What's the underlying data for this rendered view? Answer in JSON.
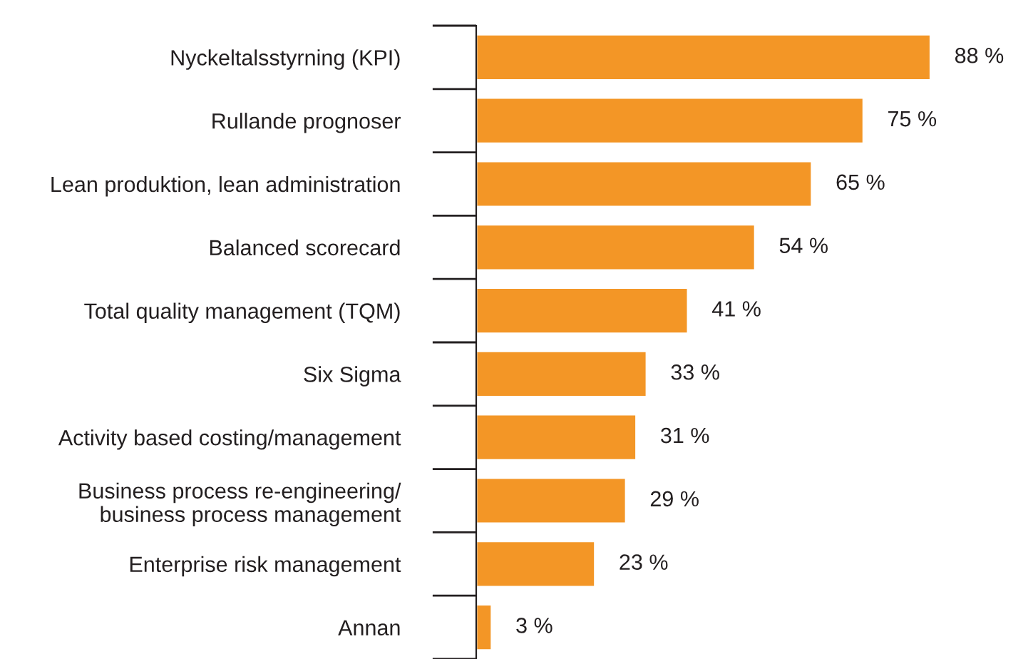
{
  "chart_data": {
    "type": "bar",
    "orientation": "horizontal",
    "categories": [
      "Nyckeltalsstyrning (KPI)",
      "Rullande prognoser",
      "Lean produktion, lean administration",
      "Balanced scorecard",
      "Total quality management (TQM)",
      "Six Sigma",
      "Activity based costing/management",
      "Business process re-engineering/\nbusiness process management",
      "Enterprise risk management",
      "Annan"
    ],
    "values": [
      88,
      75,
      65,
      54,
      41,
      33,
      31,
      29,
      23,
      3
    ],
    "value_labels": [
      "88 %",
      "75 %",
      "65 %",
      "54 %",
      "41 %",
      "33 %",
      "31 %",
      "29 %",
      "23 %",
      "3 %"
    ],
    "color": "#f39626"
  }
}
